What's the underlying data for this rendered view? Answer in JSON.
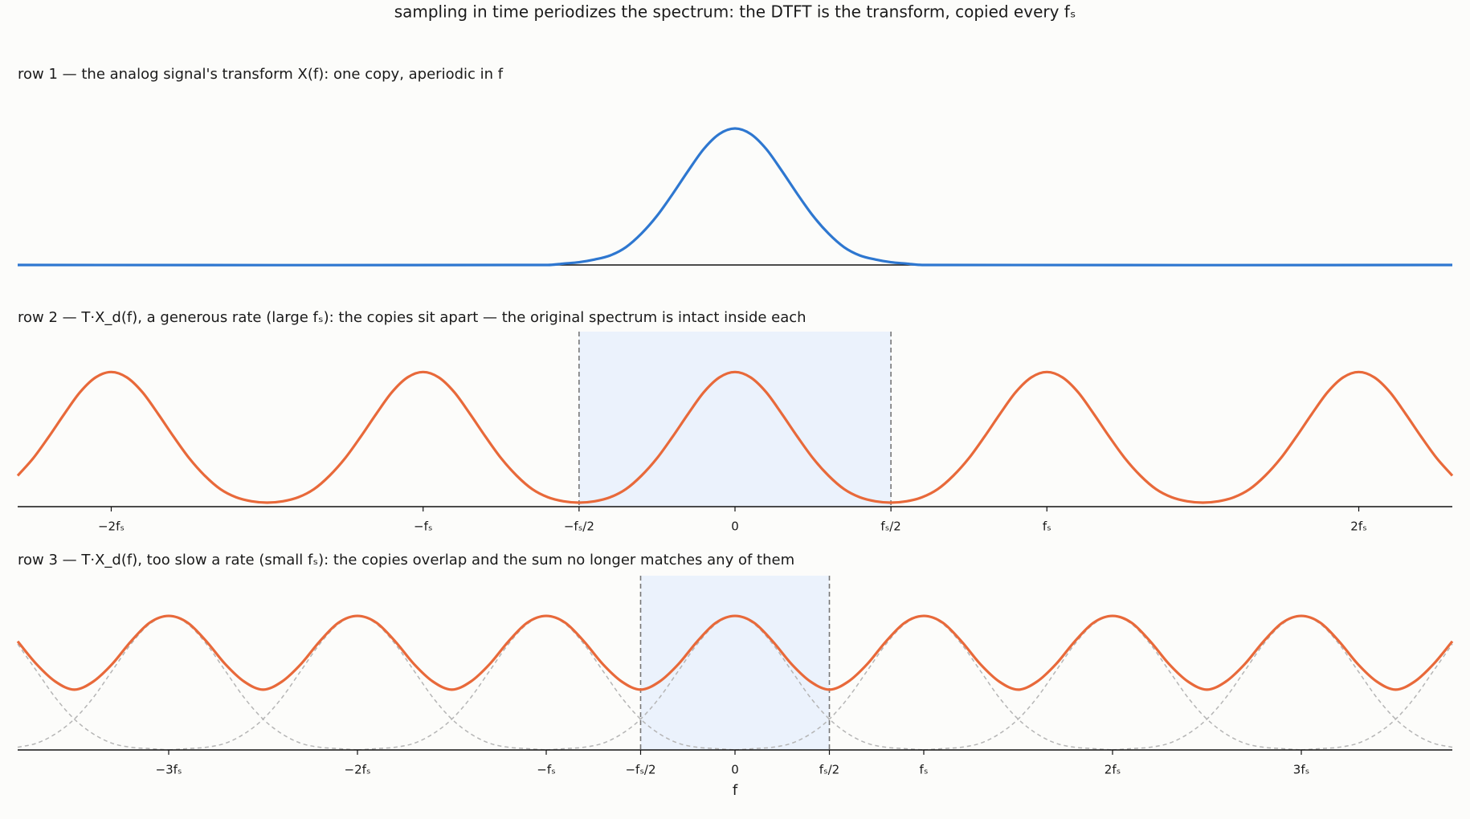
{
  "title": "sampling in time periodizes the spectrum: the DTFT is the transform, copied every fₛ",
  "chart_data": [
    {
      "type": "line",
      "title": "row 1 —  the analog signal's transform X(f):  one copy, aperiodic in f",
      "color": "#2e77d0",
      "xlim": [
        -2.3,
        2.3
      ],
      "ylim": [
        0,
        1.3
      ],
      "x": [
        -2.3,
        -0.6,
        -0.55,
        -0.5,
        -0.45,
        -0.4,
        -0.35,
        -0.3,
        -0.25,
        -0.2,
        -0.15,
        -0.1,
        -0.05,
        0,
        0.05,
        0.1,
        0.15,
        0.2,
        0.25,
        0.3,
        0.35,
        0.4,
        0.45,
        0.5,
        0.55,
        0.6,
        2.3
      ],
      "values": [
        0,
        0,
        0.01,
        0.02,
        0.04,
        0.07,
        0.13,
        0.23,
        0.36,
        0.52,
        0.69,
        0.85,
        0.96,
        1,
        0.96,
        0.85,
        0.69,
        0.52,
        0.36,
        0.23,
        0.13,
        0.07,
        0.04,
        0.02,
        0.01,
        0,
        0
      ]
    },
    {
      "type": "line",
      "title": "row 2 —  T·X_d(f), a generous rate (large fₛ):  the copies sit apart — the original spectrum is intact inside each",
      "color": "#e8693a",
      "xlim": [
        -2.3,
        2.3
      ],
      "ylim": [
        0,
        1.3
      ],
      "xticks": [
        {
          "value": -2,
          "label": "−2fₛ"
        },
        {
          "value": -1,
          "label": "−fₛ"
        },
        {
          "value": -0.5,
          "label": "−fₛ/2"
        },
        0,
        {
          "value": 0.5,
          "label": "fₛ/2"
        },
        {
          "value": 1,
          "label": "fₛ"
        },
        {
          "value": 2,
          "label": "2fₛ"
        }
      ],
      "band": [
        -0.5,
        0.5
      ],
      "band_color": "#ebf2fc",
      "x": [
        -2.3,
        -2.25,
        -2.2,
        -2.15,
        -2.1,
        -2.05,
        -2,
        -1.95,
        -1.9,
        -1.85,
        -1.8,
        -1.75,
        -1.7,
        -1.65,
        -1.6,
        -1.55,
        -1.5,
        -1.45,
        -1.4,
        -1.35,
        -1.3,
        -1.25,
        -1.2,
        -1.15,
        -1.1,
        -1.05,
        -1,
        -0.95,
        -0.9,
        -0.85,
        -0.8,
        -0.75,
        -0.7,
        -0.65,
        -0.6,
        -0.55,
        -0.5,
        -0.45,
        -0.4,
        -0.35,
        -0.3,
        -0.25,
        -0.2,
        -0.15,
        -0.1,
        -0.05,
        0,
        0.05,
        0.1,
        0.15,
        0.2,
        0.25,
        0.3,
        0.35,
        0.4,
        0.45,
        0.5,
        0.55,
        0.6,
        0.65,
        0.7,
        0.75,
        0.8,
        0.85,
        0.9,
        0.95,
        1,
        1.05,
        1.1,
        1.15,
        1.2,
        1.25,
        1.3,
        1.35,
        1.4,
        1.45,
        1.5,
        1.55,
        1.6,
        1.65,
        1.7,
        1.75,
        1.8,
        1.85,
        1.9,
        1.95,
        2,
        2.05,
        2.1,
        2.15,
        2.2,
        2.25,
        2.3
      ],
      "values": [
        0.23,
        0.36,
        0.52,
        0.69,
        0.85,
        0.96,
        1,
        0.96,
        0.85,
        0.69,
        0.52,
        0.36,
        0.23,
        0.13,
        0.07,
        0.04,
        0.03,
        0.04,
        0.07,
        0.13,
        0.23,
        0.36,
        0.52,
        0.69,
        0.85,
        0.96,
        1,
        0.96,
        0.85,
        0.69,
        0.52,
        0.36,
        0.23,
        0.13,
        0.07,
        0.04,
        0.03,
        0.04,
        0.07,
        0.13,
        0.23,
        0.36,
        0.52,
        0.69,
        0.85,
        0.96,
        1,
        0.96,
        0.85,
        0.69,
        0.52,
        0.36,
        0.23,
        0.13,
        0.07,
        0.04,
        0.03,
        0.04,
        0.07,
        0.13,
        0.23,
        0.36,
        0.52,
        0.69,
        0.85,
        0.96,
        1,
        0.96,
        0.85,
        0.69,
        0.52,
        0.36,
        0.23,
        0.13,
        0.07,
        0.04,
        0.03,
        0.04,
        0.07,
        0.13,
        0.23,
        0.36,
        0.52,
        0.69,
        0.85,
        0.96,
        1,
        0.96,
        0.85,
        0.69,
        0.52,
        0.36,
        0.23
      ]
    },
    {
      "type": "line",
      "title": "row 3 —  T·X_d(f), too slow a rate (small fₛ):  the copies overlap and the sum no longer matches any of them",
      "color": "#e8693a",
      "xlabel": "f",
      "xlim": [
        -3.8,
        3.8
      ],
      "ylim": [
        0,
        1.3
      ],
      "xticks": [
        {
          "value": -3,
          "label": "−3fₛ"
        },
        {
          "value": -2,
          "label": "−2fₛ"
        },
        {
          "value": -1,
          "label": "−fₛ"
        },
        {
          "value": -0.5,
          "label": "−fₛ/2"
        },
        0,
        {
          "value": 0.5,
          "label": "fₛ/2"
        },
        {
          "value": 1,
          "label": "fₛ"
        },
        {
          "value": 2,
          "label": "2fₛ"
        },
        {
          "value": 3,
          "label": "3fₛ"
        }
      ],
      "band": [
        -0.5,
        0.5
      ],
      "band_color": "#ebf2fc",
      "x": [
        -3.8,
        -3.7,
        -3.6,
        -3.5,
        -3.4,
        -3.3,
        -3.2,
        -3.1,
        -3,
        -2.9,
        -2.8,
        -2.7,
        -2.6,
        -2.5,
        -2.4,
        -2.3,
        -2.2,
        -2.1,
        -2,
        -1.9,
        -1.8,
        -1.7,
        -1.6,
        -1.5,
        -1.4,
        -1.3,
        -1.2,
        -1.1,
        -1,
        -0.9,
        -0.8,
        -0.7,
        -0.6,
        -0.5,
        -0.4,
        -0.3,
        -0.2,
        -0.1,
        0,
        0.1,
        0.2,
        0.3,
        0.4,
        0.5,
        0.6,
        0.7,
        0.8,
        0.9,
        1,
        1.1,
        1.2,
        1.3,
        1.4,
        1.5,
        1.6,
        1.7,
        1.8,
        1.9,
        2,
        2.1,
        2.2,
        2.3,
        2.4,
        2.5,
        2.6,
        2.7,
        2.8,
        2.9,
        3,
        3.1,
        3.2,
        3.3,
        3.4,
        3.5,
        3.6,
        3.7,
        3.8
      ],
      "values": [
        0.81,
        0.64,
        0.51,
        0.45,
        0.51,
        0.64,
        0.81,
        0.95,
        1,
        0.95,
        0.81,
        0.64,
        0.51,
        0.45,
        0.51,
        0.64,
        0.81,
        0.95,
        1,
        0.95,
        0.81,
        0.64,
        0.51,
        0.45,
        0.51,
        0.64,
        0.81,
        0.95,
        1,
        0.95,
        0.81,
        0.64,
        0.51,
        0.45,
        0.51,
        0.64,
        0.81,
        0.95,
        1,
        0.95,
        0.81,
        0.64,
        0.51,
        0.45,
        0.51,
        0.64,
        0.81,
        0.95,
        1,
        0.95,
        0.81,
        0.64,
        0.51,
        0.45,
        0.51,
        0.64,
        0.81,
        0.95,
        1,
        0.95,
        0.81,
        0.64,
        0.51,
        0.45,
        0.51,
        0.64,
        0.81,
        0.95,
        1,
        0.95,
        0.81,
        0.64,
        0.51,
        0.45,
        0.51,
        0.64,
        0.81
      ],
      "copy_color": "#b5b5b5",
      "copies": [
        {
          "x": [
            -3.8,
            -3.7,
            -3.6,
            -3.5,
            -3.4,
            -3.3,
            -3.2,
            -3.1,
            -3
          ],
          "values": [
            0.79,
            0.59,
            0.39,
            0.23,
            0.12,
            0.05,
            0.02,
            0.01,
            0
          ]
        },
        {
          "x": [
            -3.8,
            -3.7,
            -3.6,
            -3.5,
            -3.4,
            -3.3,
            -3.2,
            -3.1,
            -3,
            -2.9,
            -2.8,
            -2.7,
            -2.6,
            -2.5,
            -2.4,
            -2.3,
            -2.2,
            -2.1,
            -2
          ],
          "values": [
            0.02,
            0.05,
            0.12,
            0.23,
            0.39,
            0.59,
            0.79,
            0.94,
            1,
            0.94,
            0.79,
            0.59,
            0.39,
            0.23,
            0.12,
            0.05,
            0.02,
            0.01,
            0
          ]
        },
        {
          "x": [
            -3,
            -2.9,
            -2.8,
            -2.7,
            -2.6,
            -2.5,
            -2.4,
            -2.3,
            -2.2,
            -2.1,
            -2,
            -1.9,
            -1.8,
            -1.7,
            -1.6,
            -1.5,
            -1.4,
            -1.3,
            -1.2,
            -1.1,
            -1
          ],
          "values": [
            0,
            0.01,
            0.02,
            0.05,
            0.12,
            0.23,
            0.39,
            0.59,
            0.79,
            0.94,
            1,
            0.94,
            0.79,
            0.59,
            0.39,
            0.23,
            0.12,
            0.05,
            0.02,
            0.01,
            0
          ]
        },
        {
          "x": [
            -2,
            -1.9,
            -1.8,
            -1.7,
            -1.6,
            -1.5,
            -1.4,
            -1.3,
            -1.2,
            -1.1,
            -1,
            -0.9,
            -0.8,
            -0.7,
            -0.6,
            -0.5,
            -0.4,
            -0.3,
            -0.2,
            -0.1,
            0
          ],
          "values": [
            0,
            0.01,
            0.02,
            0.05,
            0.12,
            0.23,
            0.39,
            0.59,
            0.79,
            0.94,
            1,
            0.94,
            0.79,
            0.59,
            0.39,
            0.23,
            0.12,
            0.05,
            0.02,
            0.01,
            0
          ]
        },
        {
          "x": [
            -1,
            -0.9,
            -0.8,
            -0.7,
            -0.6,
            -0.5,
            -0.4,
            -0.3,
            -0.2,
            -0.1,
            0,
            0.1,
            0.2,
            0.3,
            0.4,
            0.5,
            0.6,
            0.7,
            0.8,
            0.9,
            1
          ],
          "values": [
            0,
            0.01,
            0.02,
            0.05,
            0.12,
            0.23,
            0.39,
            0.59,
            0.79,
            0.94,
            1,
            0.94,
            0.79,
            0.59,
            0.39,
            0.23,
            0.12,
            0.05,
            0.02,
            0.01,
            0
          ]
        },
        {
          "x": [
            0,
            0.1,
            0.2,
            0.3,
            0.4,
            0.5,
            0.6,
            0.7,
            0.8,
            0.9,
            1,
            1.1,
            1.2,
            1.3,
            1.4,
            1.5,
            1.6,
            1.7,
            1.8,
            1.9,
            2
          ],
          "values": [
            0,
            0.01,
            0.02,
            0.05,
            0.12,
            0.23,
            0.39,
            0.59,
            0.79,
            0.94,
            1,
            0.94,
            0.79,
            0.59,
            0.39,
            0.23,
            0.12,
            0.05,
            0.02,
            0.01,
            0
          ]
        },
        {
          "x": [
            1,
            1.1,
            1.2,
            1.3,
            1.4,
            1.5,
            1.6,
            1.7,
            1.8,
            1.9,
            2,
            2.1,
            2.2,
            2.3,
            2.4,
            2.5,
            2.6,
            2.7,
            2.8,
            2.9,
            3
          ],
          "values": [
            0,
            0.01,
            0.02,
            0.05,
            0.12,
            0.23,
            0.39,
            0.59,
            0.79,
            0.94,
            1,
            0.94,
            0.79,
            0.59,
            0.39,
            0.23,
            0.12,
            0.05,
            0.02,
            0.01,
            0
          ]
        },
        {
          "x": [
            2,
            2.1,
            2.2,
            2.3,
            2.4,
            2.5,
            2.6,
            2.7,
            2.8,
            2.9,
            3,
            3.1,
            3.2,
            3.3,
            3.4,
            3.5,
            3.6,
            3.7,
            3.8
          ],
          "values": [
            0,
            0.01,
            0.02,
            0.05,
            0.12,
            0.23,
            0.39,
            0.59,
            0.79,
            0.94,
            1,
            0.94,
            0.79,
            0.59,
            0.39,
            0.23,
            0.12,
            0.05,
            0.02
          ]
        },
        {
          "x": [
            3,
            3.1,
            3.2,
            3.3,
            3.4,
            3.5,
            3.6,
            3.7,
            3.8
          ],
          "values": [
            0,
            0.01,
            0.02,
            0.05,
            0.12,
            0.23,
            0.39,
            0.59,
            0.79
          ]
        }
      ]
    }
  ]
}
